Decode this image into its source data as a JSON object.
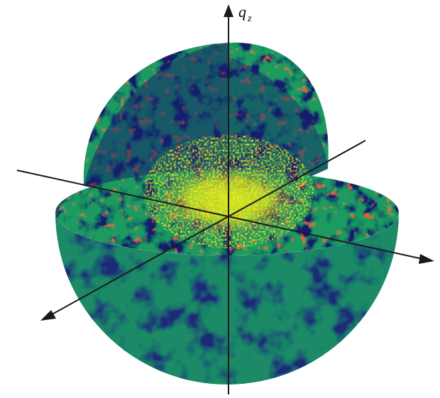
{
  "axis_label": {
    "symbol": "q",
    "subscript": "z"
  }
}
